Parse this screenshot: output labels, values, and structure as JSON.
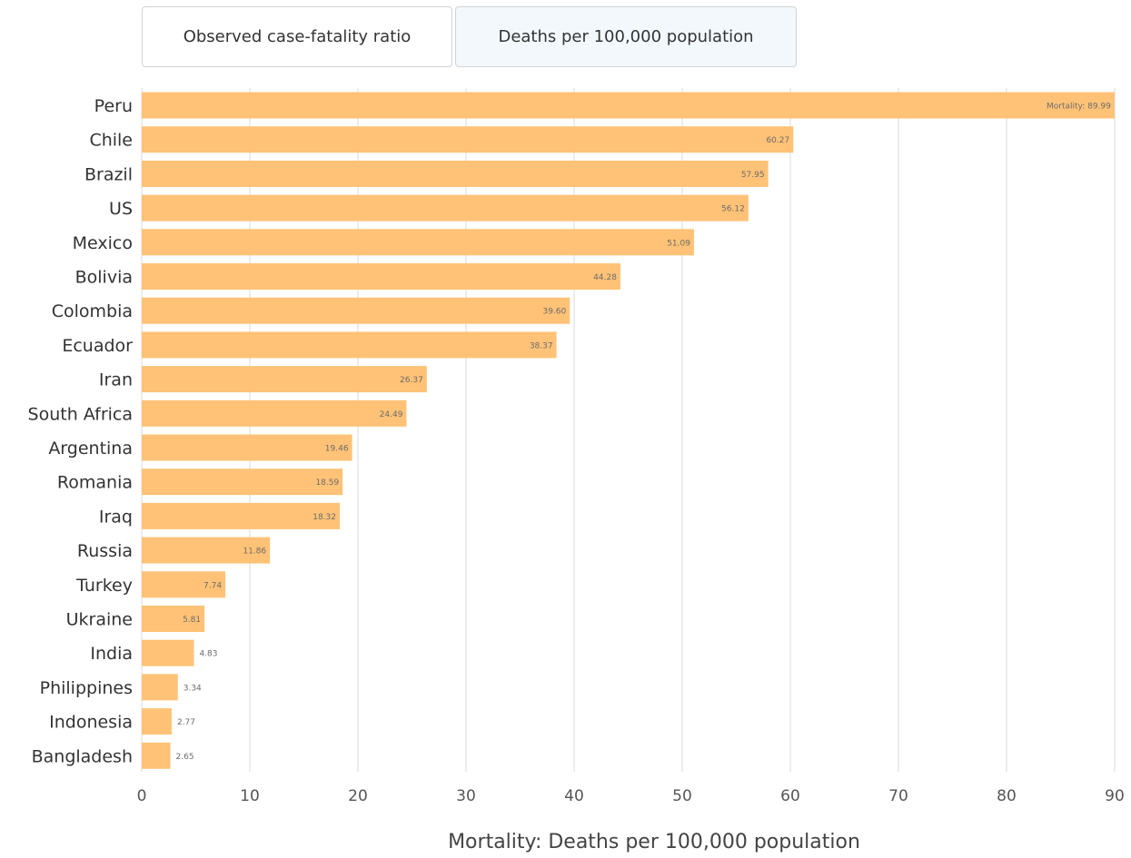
{
  "tabs": [
    {
      "label": "Observed case-fatality ratio",
      "active": false
    },
    {
      "label": "Deaths per 100,000 population",
      "active": true
    }
  ],
  "colors": {
    "bar": "#ffc276",
    "grid": "#d9d9d9",
    "tab_border": "#cfd4d9",
    "tab_active_bg": "#f3f8fc"
  },
  "chart_data": {
    "type": "bar",
    "orientation": "horizontal",
    "categories": [
      "Peru",
      "Chile",
      "Brazil",
      "US",
      "Mexico",
      "Bolivia",
      "Colombia",
      "Ecuador",
      "Iran",
      "South Africa",
      "Argentina",
      "Romania",
      "Iraq",
      "Russia",
      "Turkey",
      "Ukraine",
      "India",
      "Philippines",
      "Indonesia",
      "Bangladesh"
    ],
    "values": [
      89.99,
      60.27,
      57.95,
      56.12,
      51.09,
      44.28,
      39.6,
      38.37,
      26.37,
      24.49,
      19.46,
      18.59,
      18.32,
      11.86,
      7.74,
      5.81,
      4.83,
      3.34,
      2.77,
      2.65
    ],
    "data_labels": [
      "Mortality: 89.99",
      "60.27",
      "57.95",
      "56.12",
      "51.09",
      "44.28",
      "39.60",
      "38.37",
      "26.37",
      "24.49",
      "19.46",
      "18.59",
      "18.32",
      "11.86",
      "7.74",
      "5.81",
      "4.83",
      "3.34",
      "2.77",
      "2.65"
    ],
    "xlabel": "Mortality: Deaths per 100,000 population",
    "ylabel": "",
    "title": "",
    "xlim": [
      0,
      90
    ],
    "xticks": [
      0,
      10,
      20,
      30,
      40,
      50,
      60,
      70,
      80,
      90
    ],
    "grid": true,
    "legend": "none"
  }
}
